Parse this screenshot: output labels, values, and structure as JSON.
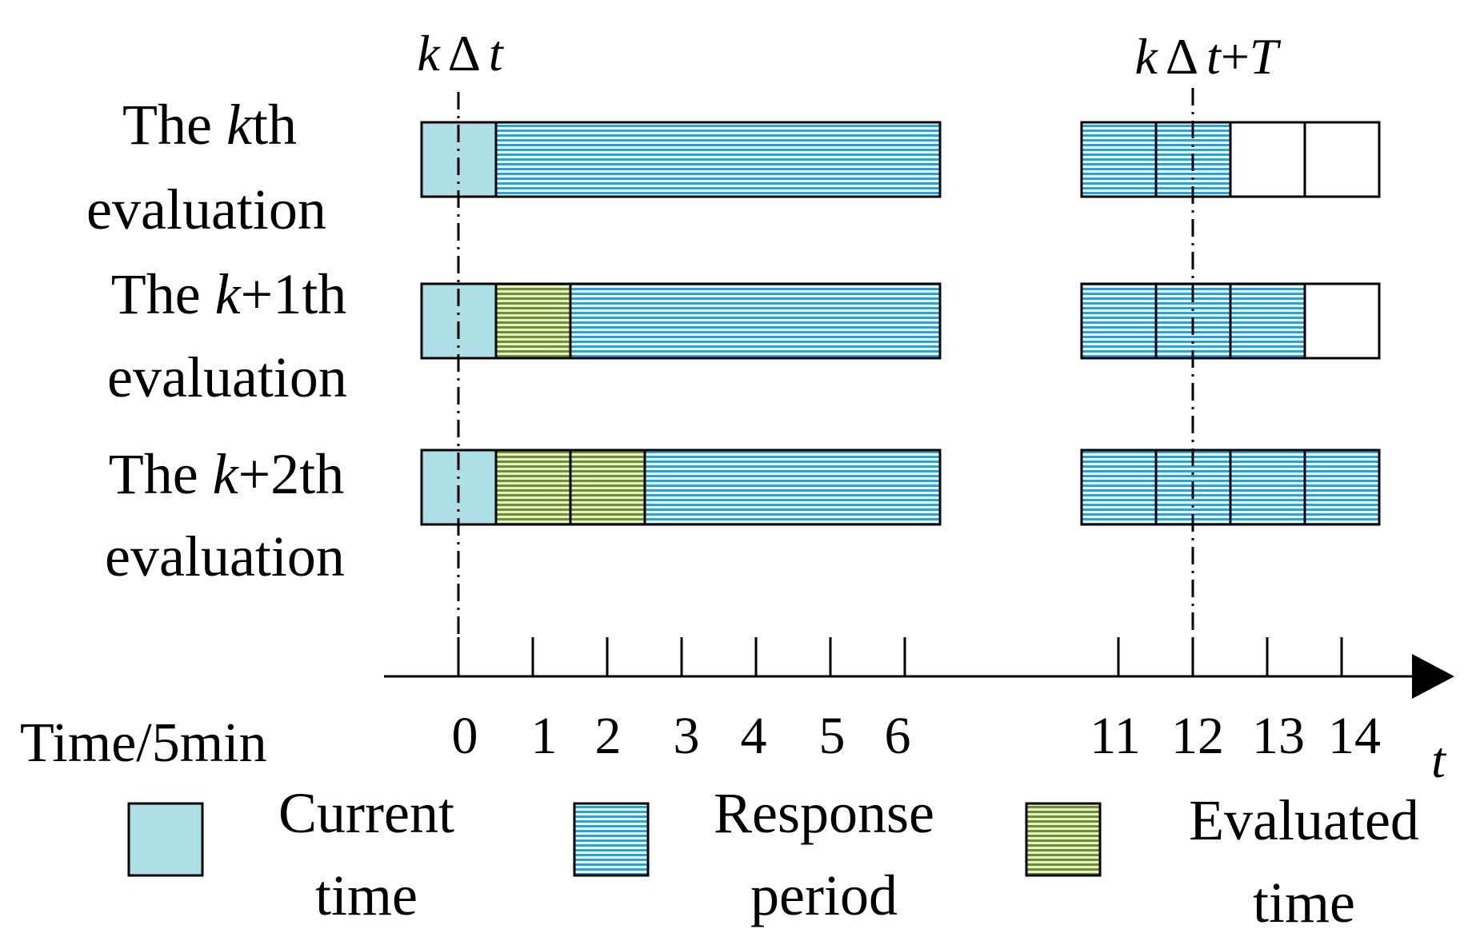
{
  "markers": {
    "left": {
      "k": "k",
      "delta": "Δ",
      "t": "t"
    },
    "right": {
      "k": "k",
      "delta": "Δ",
      "t": "t",
      "plus": "+",
      "T": "T"
    }
  },
  "rows": [
    {
      "line1": {
        "pre": "The ",
        "var": "k",
        "post": "th"
      },
      "line2": "evaluation",
      "left_segments": [
        "current",
        "response"
      ],
      "right_cells": [
        "response",
        "response",
        "empty",
        "empty"
      ]
    },
    {
      "line1": {
        "pre": "The ",
        "var": "k",
        "post": "+1th"
      },
      "line2": "evaluation",
      "left_segments": [
        "current",
        "evaluated",
        "response"
      ],
      "right_cells": [
        "response",
        "response",
        "response",
        "empty"
      ]
    },
    {
      "line1": {
        "pre": "The ",
        "var": "k",
        "post": "+2th"
      },
      "line2": "evaluation",
      "left_segments": [
        "current",
        "evaluated",
        "evaluated",
        "response"
      ],
      "right_cells": [
        "response",
        "response",
        "response",
        "response"
      ]
    }
  ],
  "axis": {
    "label": "Time/5min",
    "variable": "t",
    "ticks_left": [
      "0",
      "1",
      "2",
      "3",
      "4",
      "5",
      "6"
    ],
    "ticks_right": [
      "11",
      "12",
      "13",
      "14"
    ]
  },
  "legend": [
    {
      "kind": "current",
      "line1": "Current",
      "line2": "time"
    },
    {
      "kind": "response",
      "line1": "Response",
      "line2": "period"
    },
    {
      "kind": "evaluated",
      "line1": "Evaluated",
      "line2": "time"
    }
  ],
  "colors": {
    "current_fill": "#ADDFE8",
    "response_stripe": "#18A8E8",
    "evaluated_stripe": "#6E8F2F",
    "evaluated_bg": "#E8F0C8",
    "stroke": "#000000"
  }
}
